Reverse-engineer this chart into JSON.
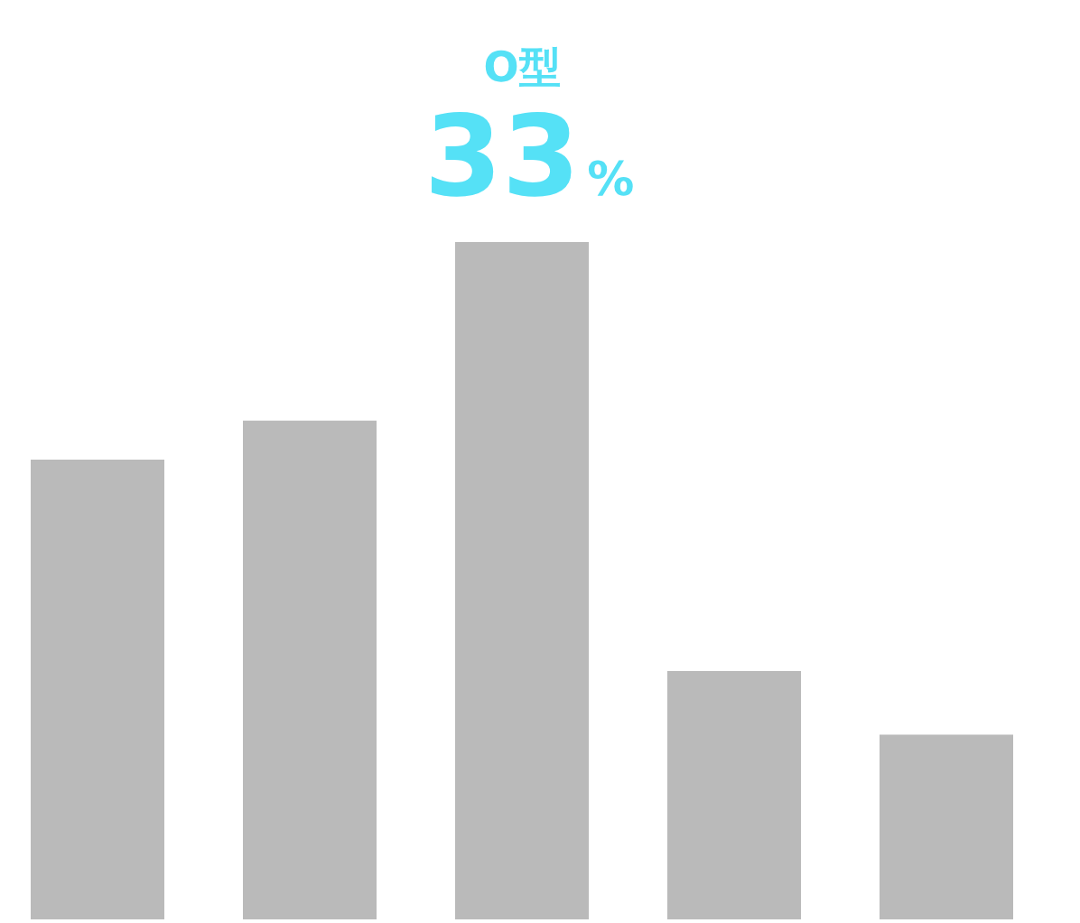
{
  "chart_data": {
    "type": "bar",
    "categories": [
      null,
      null,
      null,
      null,
      null
    ],
    "values": [
      22.4,
      24.3,
      33,
      12.1,
      9
    ],
    "value_labels": [
      null,
      null,
      "33%",
      null,
      null
    ],
    "annotations": [
      "O型"
    ],
    "color": "#bababa"
  }
}
